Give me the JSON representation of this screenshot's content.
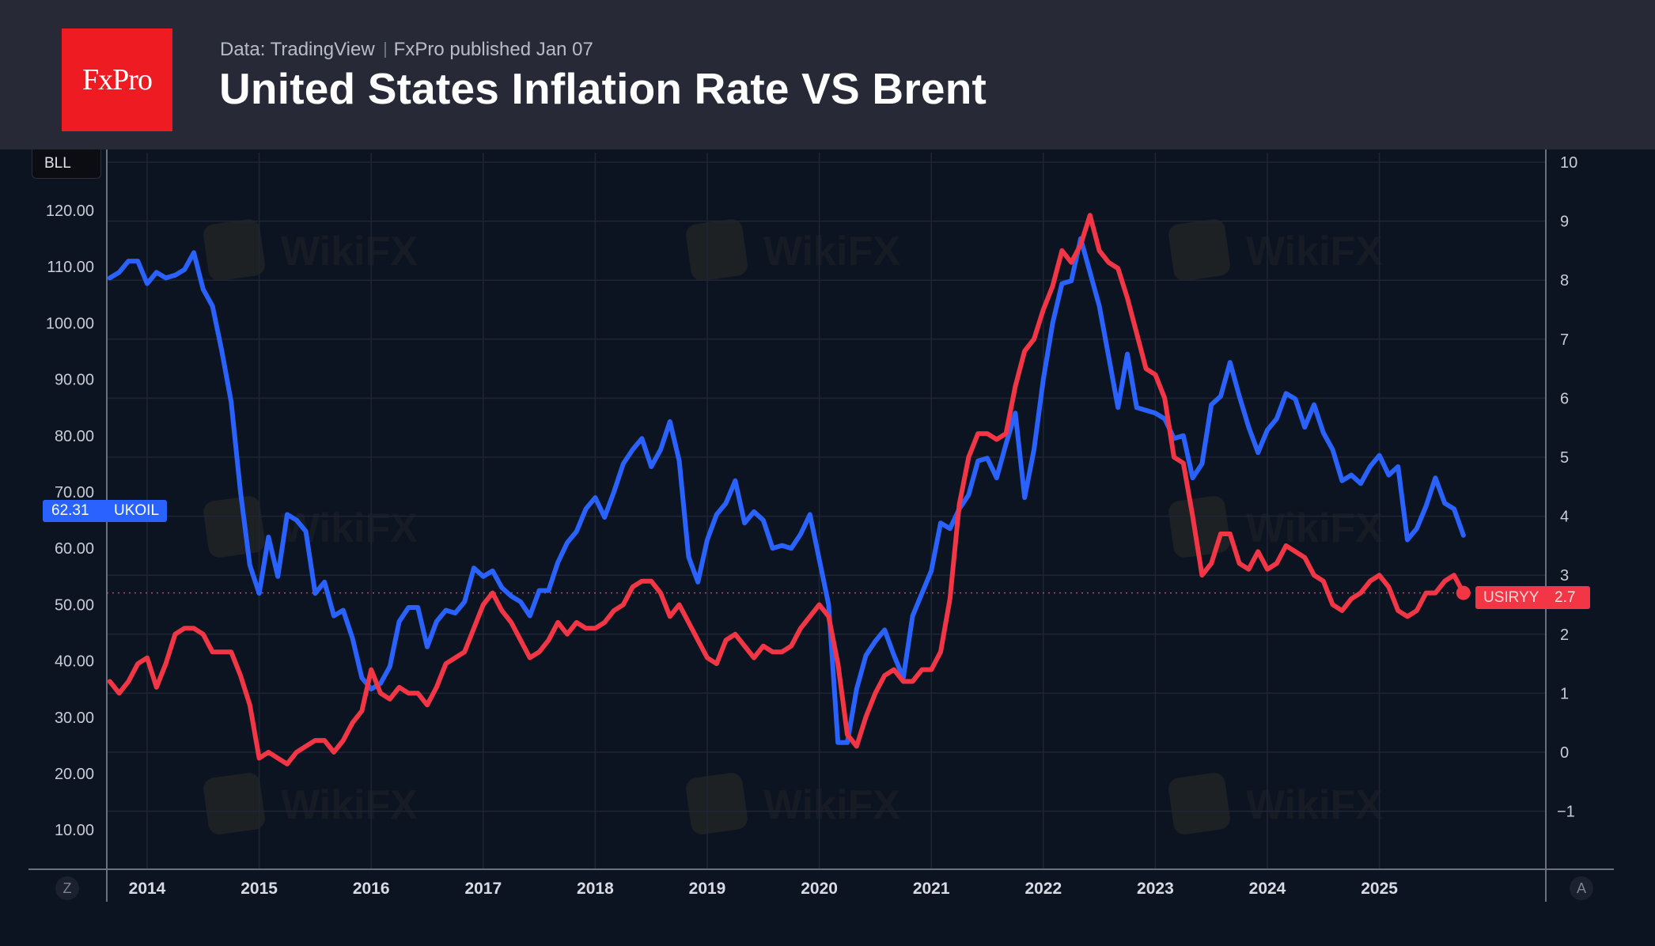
{
  "header": {
    "logo_text": "FxPro",
    "data_source": "Data: TradingView",
    "publisher": "FxPro published Jan 07",
    "title": "United States Inflation Rate VS Brent"
  },
  "controls": {
    "currency_label": "BLL",
    "left_button": "Z",
    "right_button": "A"
  },
  "watermark": "WikiFX",
  "colors": {
    "brent": "#2962ff",
    "inflation": "#f23645",
    "header_bg": "#272a36",
    "chart_bg": "#0d1421",
    "logo_bg": "#ee1b22"
  },
  "chart_data": {
    "type": "line",
    "title": "United States Inflation Rate VS Brent",
    "xlabel": "",
    "x_start": "2013-09",
    "x_frequency": "monthly",
    "x_ticks": [
      "2014",
      "2015",
      "2016",
      "2017",
      "2018",
      "2019",
      "2020",
      "2021",
      "2022",
      "2023",
      "2024",
      "2025"
    ],
    "grid": true,
    "left_axis": {
      "label": "BLL",
      "ticks": [
        "10.00",
        "20.00",
        "30.00",
        "40.00",
        "50.00",
        "60.00",
        "70.00",
        "80.00",
        "90.00",
        "100.00",
        "110.00",
        "120.00"
      ],
      "range": [
        5,
        130
      ]
    },
    "right_axis": {
      "ticks": [
        "−1",
        "0",
        "1",
        "2",
        "3",
        "4",
        "5",
        "6",
        "7",
        "8",
        "9",
        "10"
      ],
      "range": [
        -1.7,
        10.2
      ]
    },
    "series": [
      {
        "name": "UKOIL",
        "axis": "left",
        "last_value_label": "62.31",
        "values": [
          108,
          109,
          111,
          111,
          107,
          109,
          108,
          108.5,
          109.5,
          112.5,
          106,
          103,
          95,
          86,
          70,
          57,
          52,
          62,
          55,
          66,
          65,
          63,
          52,
          54,
          48,
          49,
          44,
          37,
          35,
          36,
          39,
          47,
          49.5,
          49.5,
          42.5,
          47,
          49,
          48.5,
          50.5,
          56.5,
          55,
          56,
          53,
          51.5,
          50.5,
          48,
          52.5,
          52.5,
          57.5,
          61,
          63,
          67,
          69,
          65.5,
          70,
          75,
          77.5,
          79.5,
          74.5,
          77.5,
          82.5,
          75.5,
          58.5,
          54,
          61.5,
          66,
          68,
          72,
          64.5,
          66.5,
          65,
          60,
          60.5,
          60,
          62.5,
          66,
          58,
          50,
          25.5,
          25.5,
          35,
          41,
          43.5,
          45.5,
          41,
          37,
          48,
          52,
          56,
          64.5,
          63.5,
          67,
          69.5,
          75.5,
          76,
          72.5,
          78.5,
          84,
          69,
          77.5,
          90,
          100,
          107,
          107.5,
          115,
          109,
          103,
          94,
          85,
          94.5,
          85,
          84.5,
          84,
          83,
          79.5,
          80,
          72.5,
          75,
          85.5,
          87,
          93,
          87,
          81.5,
          77,
          81,
          83,
          87.5,
          86.5,
          81.5,
          85.5,
          80.5,
          77.5,
          72,
          73,
          71.5,
          74.5,
          76.5,
          73,
          74.5,
          61.5,
          63.5,
          67.5,
          72.5,
          68,
          67,
          62.31
        ]
      },
      {
        "name": "USIRYY",
        "axis": "right",
        "last_value_label": "2.7",
        "values": [
          1.2,
          1.0,
          1.2,
          1.5,
          1.6,
          1.1,
          1.5,
          2.0,
          2.1,
          2.1,
          2.0,
          1.7,
          1.7,
          1.7,
          1.3,
          0.8,
          -0.1,
          0.0,
          -0.1,
          -0.2,
          0.0,
          0.1,
          0.2,
          0.2,
          0.0,
          0.2,
          0.5,
          0.7,
          1.4,
          1.0,
          0.9,
          1.1,
          1.0,
          1.0,
          0.8,
          1.1,
          1.5,
          1.6,
          1.7,
          2.1,
          2.5,
          2.7,
          2.4,
          2.2,
          1.9,
          1.6,
          1.7,
          1.9,
          2.2,
          2.0,
          2.2,
          2.1,
          2.1,
          2.2,
          2.4,
          2.5,
          2.8,
          2.9,
          2.9,
          2.7,
          2.3,
          2.5,
          2.2,
          1.9,
          1.6,
          1.5,
          1.9,
          2.0,
          1.8,
          1.6,
          1.8,
          1.7,
          1.7,
          1.8,
          2.1,
          2.3,
          2.5,
          2.3,
          1.5,
          0.3,
          0.1,
          0.6,
          1.0,
          1.3,
          1.4,
          1.2,
          1.2,
          1.4,
          1.4,
          1.7,
          2.6,
          4.2,
          5.0,
          5.4,
          5.4,
          5.3,
          5.4,
          6.2,
          6.8,
          7.0,
          7.5,
          7.9,
          8.5,
          8.3,
          8.6,
          9.1,
          8.5,
          8.3,
          8.2,
          7.7,
          7.1,
          6.5,
          6.4,
          6.0,
          5.0,
          4.9,
          4.0,
          3.0,
          3.2,
          3.7,
          3.7,
          3.2,
          3.1,
          3.4,
          3.1,
          3.2,
          3.5,
          3.4,
          3.3,
          3.0,
          2.9,
          2.5,
          2.4,
          2.6,
          2.7,
          2.9,
          3.0,
          2.8,
          2.4,
          2.3,
          2.4,
          2.7,
          2.7,
          2.9,
          3.0,
          2.7
        ]
      }
    ],
    "legend": "price labels on axes"
  }
}
